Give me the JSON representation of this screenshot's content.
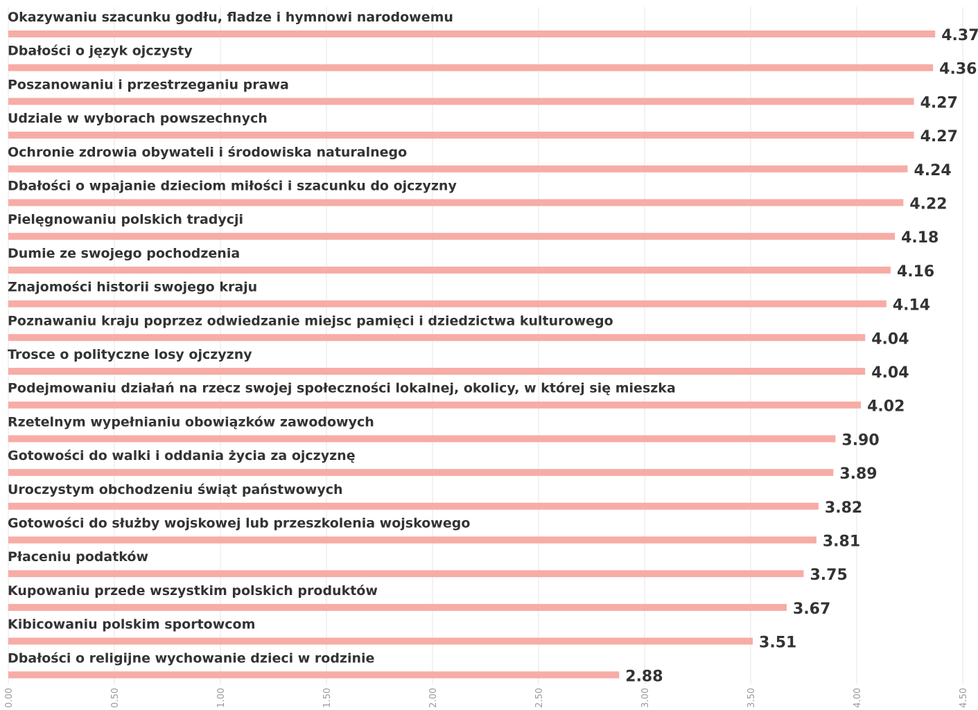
{
  "chart_data": {
    "type": "barh",
    "categories": [
      "Okazywaniu szacunku godłu, fladze i hymnowi narodowemu",
      "Dbałości o język ojczysty",
      "Poszanowaniu i przestrzeganiu prawa",
      "Udziale w wyborach powszechnych",
      "Ochronie zdrowia obywateli i środowiska naturalnego",
      "Dbałości o wpajanie dzieciom miłości i szacunku do ojczyzny",
      "Pielęgnowaniu polskich tradycji",
      "Dumie ze swojego pochodzenia",
      "Znajomości historii swojego kraju",
      "Poznawaniu kraju poprzez odwiedzanie miejsc pamięci i dziedzictwa kulturowego",
      "Trosce o polityczne losy ojczyzny",
      "Podejmowaniu działań na rzecz swojej społeczności lokalnej, okolicy, w której się mieszka",
      "Rzetelnym wypełnianiu obowiązków zawodowych",
      "Gotowości do walki i oddania życia za ojczyznę",
      "Uroczystym obchodzeniu świąt państwowych",
      "Gotowości do służby wojskowej lub przeszkolenia wojskowego",
      "Płaceniu podatków",
      "Kupowaniu przede wszystkim polskich produktów",
      "Kibicowaniu polskim sportowcom",
      "Dbałości o religijne wychowanie dzieci w rodzinie"
    ],
    "values": [
      4.37,
      4.36,
      4.27,
      4.27,
      4.24,
      4.22,
      4.18,
      4.16,
      4.14,
      4.04,
      4.04,
      4.02,
      3.9,
      3.89,
      3.82,
      3.81,
      3.75,
      3.67,
      3.51,
      2.88
    ],
    "value_labels": [
      "4.37",
      "4.36",
      "4.27",
      "4.27",
      "4.24",
      "4.22",
      "4.18",
      "4.16",
      "4.14",
      "4.04",
      "4.04",
      "4.02",
      "3.90",
      "3.89",
      "3.82",
      "3.81",
      "3.75",
      "3.67",
      "3.51",
      "2.88"
    ],
    "color": "#f7aca6",
    "xlim": [
      0,
      4.5
    ],
    "xticks": [
      {
        "value": 0,
        "label": "0.00"
      },
      {
        "value": 0.5,
        "label": "0.50"
      },
      {
        "value": 1,
        "label": "1.00"
      },
      {
        "value": 1.5,
        "label": "1.50"
      },
      {
        "value": 2,
        "label": "2.00"
      },
      {
        "value": 2.5,
        "label": "2.50"
      },
      {
        "value": 3,
        "label": "3.00"
      },
      {
        "value": 3.5,
        "label": "3.50"
      },
      {
        "value": 4,
        "label": "4.00"
      },
      {
        "value": 4.5,
        "label": "4.50"
      }
    ],
    "grid": true
  }
}
